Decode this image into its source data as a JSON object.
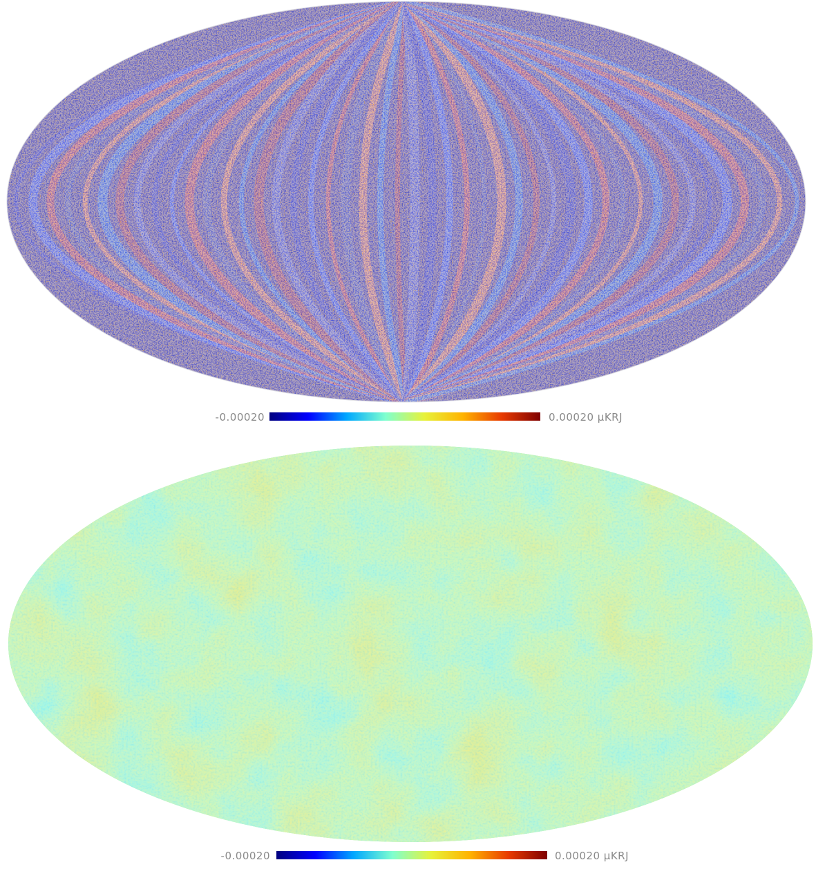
{
  "maps": [
    {
      "colorbar": {
        "min_label": "-0.00020",
        "max_label": "0.00020 µKRJ",
        "colors": [
          "#00007f",
          "#0000ff",
          "#00a8ff",
          "#7fffcf",
          "#e7f23a",
          "#ffb300",
          "#e83a00",
          "#7f0000"
        ]
      }
    },
    {
      "colorbar": {
        "min_label": "-0.00020",
        "max_label": "0.00020 µKRJ",
        "colors": [
          "#00007f",
          "#0000ff",
          "#00a8ff",
          "#7fffcf",
          "#e7f23a",
          "#ffb300",
          "#e83a00",
          "#7f0000"
        ]
      }
    }
  ]
}
